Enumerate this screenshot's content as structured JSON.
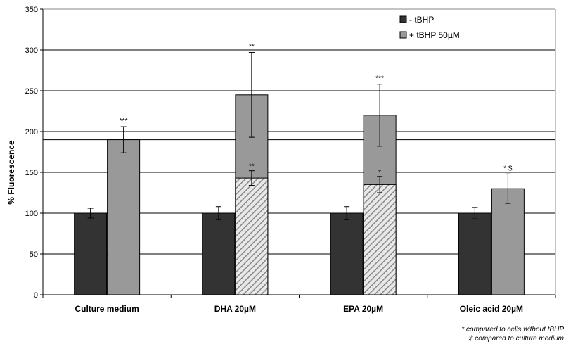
{
  "chart_data": {
    "type": "bar",
    "ylabel": "% Fluorescence",
    "xlabel": "",
    "ylim": [
      0,
      350
    ],
    "yticks": [
      0,
      50,
      100,
      150,
      200,
      250,
      300,
      350
    ],
    "categories": [
      "Culture medium",
      "DHA 20µM",
      "EPA 20µM",
      "Oleic acid 20µM"
    ],
    "series": [
      {
        "name": "- tBHP",
        "color": "#333333",
        "values": [
          100,
          100,
          100,
          100
        ],
        "errors": [
          6,
          8,
          8,
          7
        ]
      },
      {
        "name": "+ tBHP 50µM",
        "color": "#999999",
        "values": [
          190,
          245,
          220,
          130
        ],
        "errors": [
          16,
          52,
          38,
          18
        ],
        "annotations": [
          "***",
          "**",
          "***",
          "* $"
        ]
      }
    ],
    "inner_hatched": {
      "values": [
        null,
        143,
        135,
        null
      ],
      "errors": [
        null,
        9,
        10,
        null
      ],
      "annotations": [
        "",
        "**",
        "*",
        ""
      ]
    },
    "reference_line": 190,
    "grid": true,
    "legend_position": "top-right",
    "footnotes": [
      "* compared to cells without tBHP",
      "$ compared to culture medium"
    ]
  }
}
